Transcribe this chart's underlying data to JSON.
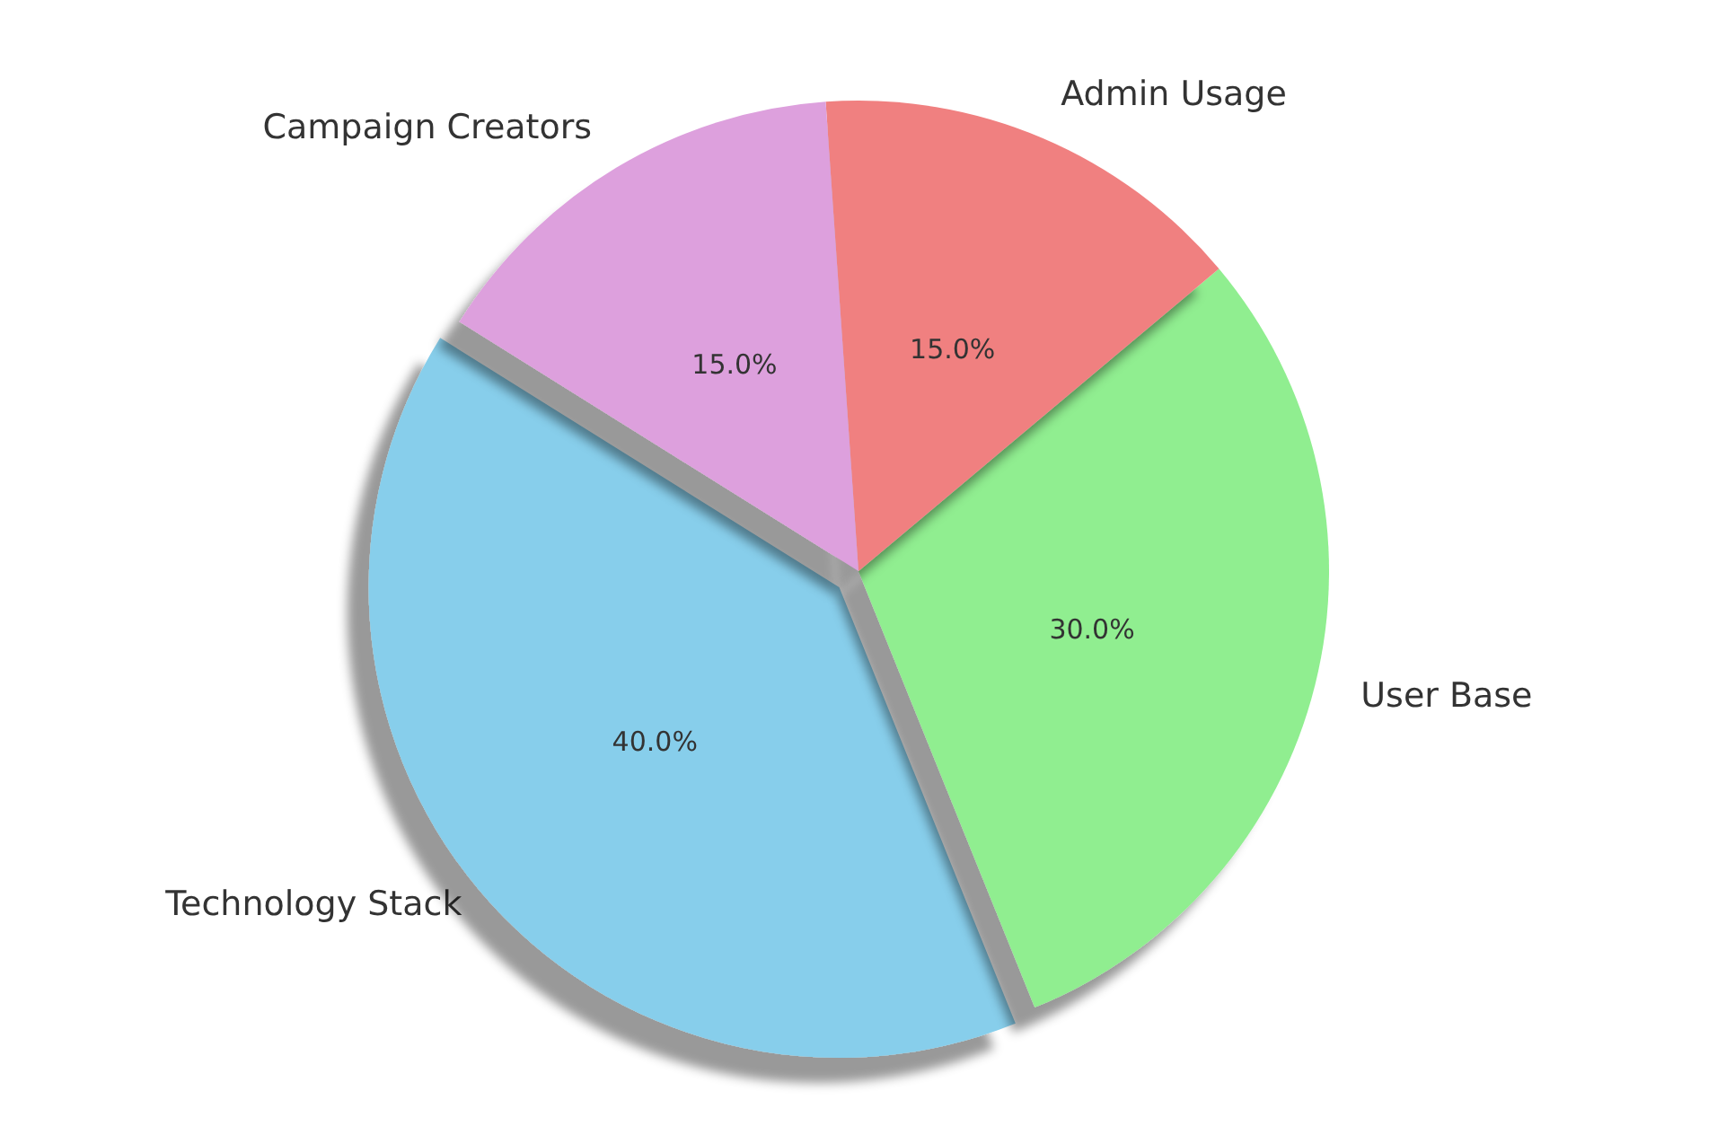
{
  "chart_data": {
    "type": "pie",
    "categories": [
      "Technology Stack",
      "User Base",
      "Admin Usage",
      "Campaign Creators"
    ],
    "values": [
      40,
      30,
      15,
      15
    ],
    "value_labels": [
      "40.0%",
      "30.0%",
      "15.0%",
      "15.0%"
    ],
    "colors": [
      "#87ceeb",
      "#90ee90",
      "#f08080",
      "#dda0dd"
    ],
    "legend": false
  }
}
